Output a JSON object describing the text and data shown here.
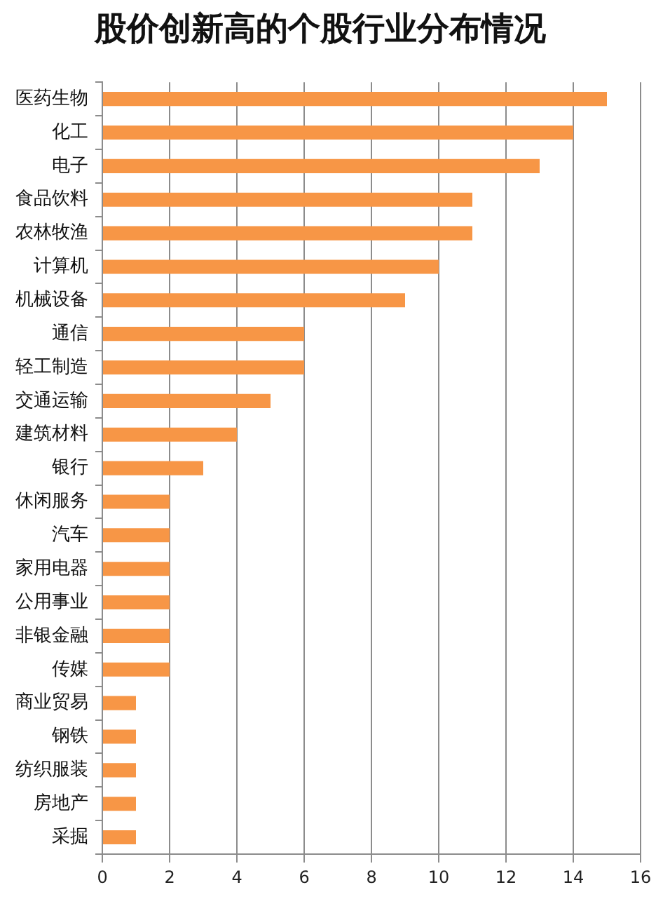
{
  "chart_data": {
    "type": "bar",
    "orientation": "horizontal",
    "title": "股价创新高的个股行业分布情况",
    "categories": [
      "医药生物",
      "化工",
      "电子",
      "食品饮料",
      "农林牧渔",
      "计算机",
      "机械设备",
      "通信",
      "轻工制造",
      "交通运输",
      "建筑材料",
      "银行",
      "休闲服务",
      "汽车",
      "家用电器",
      "公用事业",
      "非银金融",
      "传媒",
      "商业贸易",
      "钢铁",
      "纺织服装",
      "房地产",
      "采掘"
    ],
    "values": [
      15,
      14,
      13,
      11,
      11,
      10,
      9,
      6,
      6,
      5,
      4,
      3,
      2,
      2,
      2,
      2,
      2,
      2,
      1,
      1,
      1,
      1,
      1
    ],
    "color": "#f79646",
    "xlim": [
      0,
      16
    ],
    "xticks": [
      0,
      2,
      4,
      6,
      8,
      10,
      12,
      14,
      16
    ],
    "grid": "x"
  }
}
